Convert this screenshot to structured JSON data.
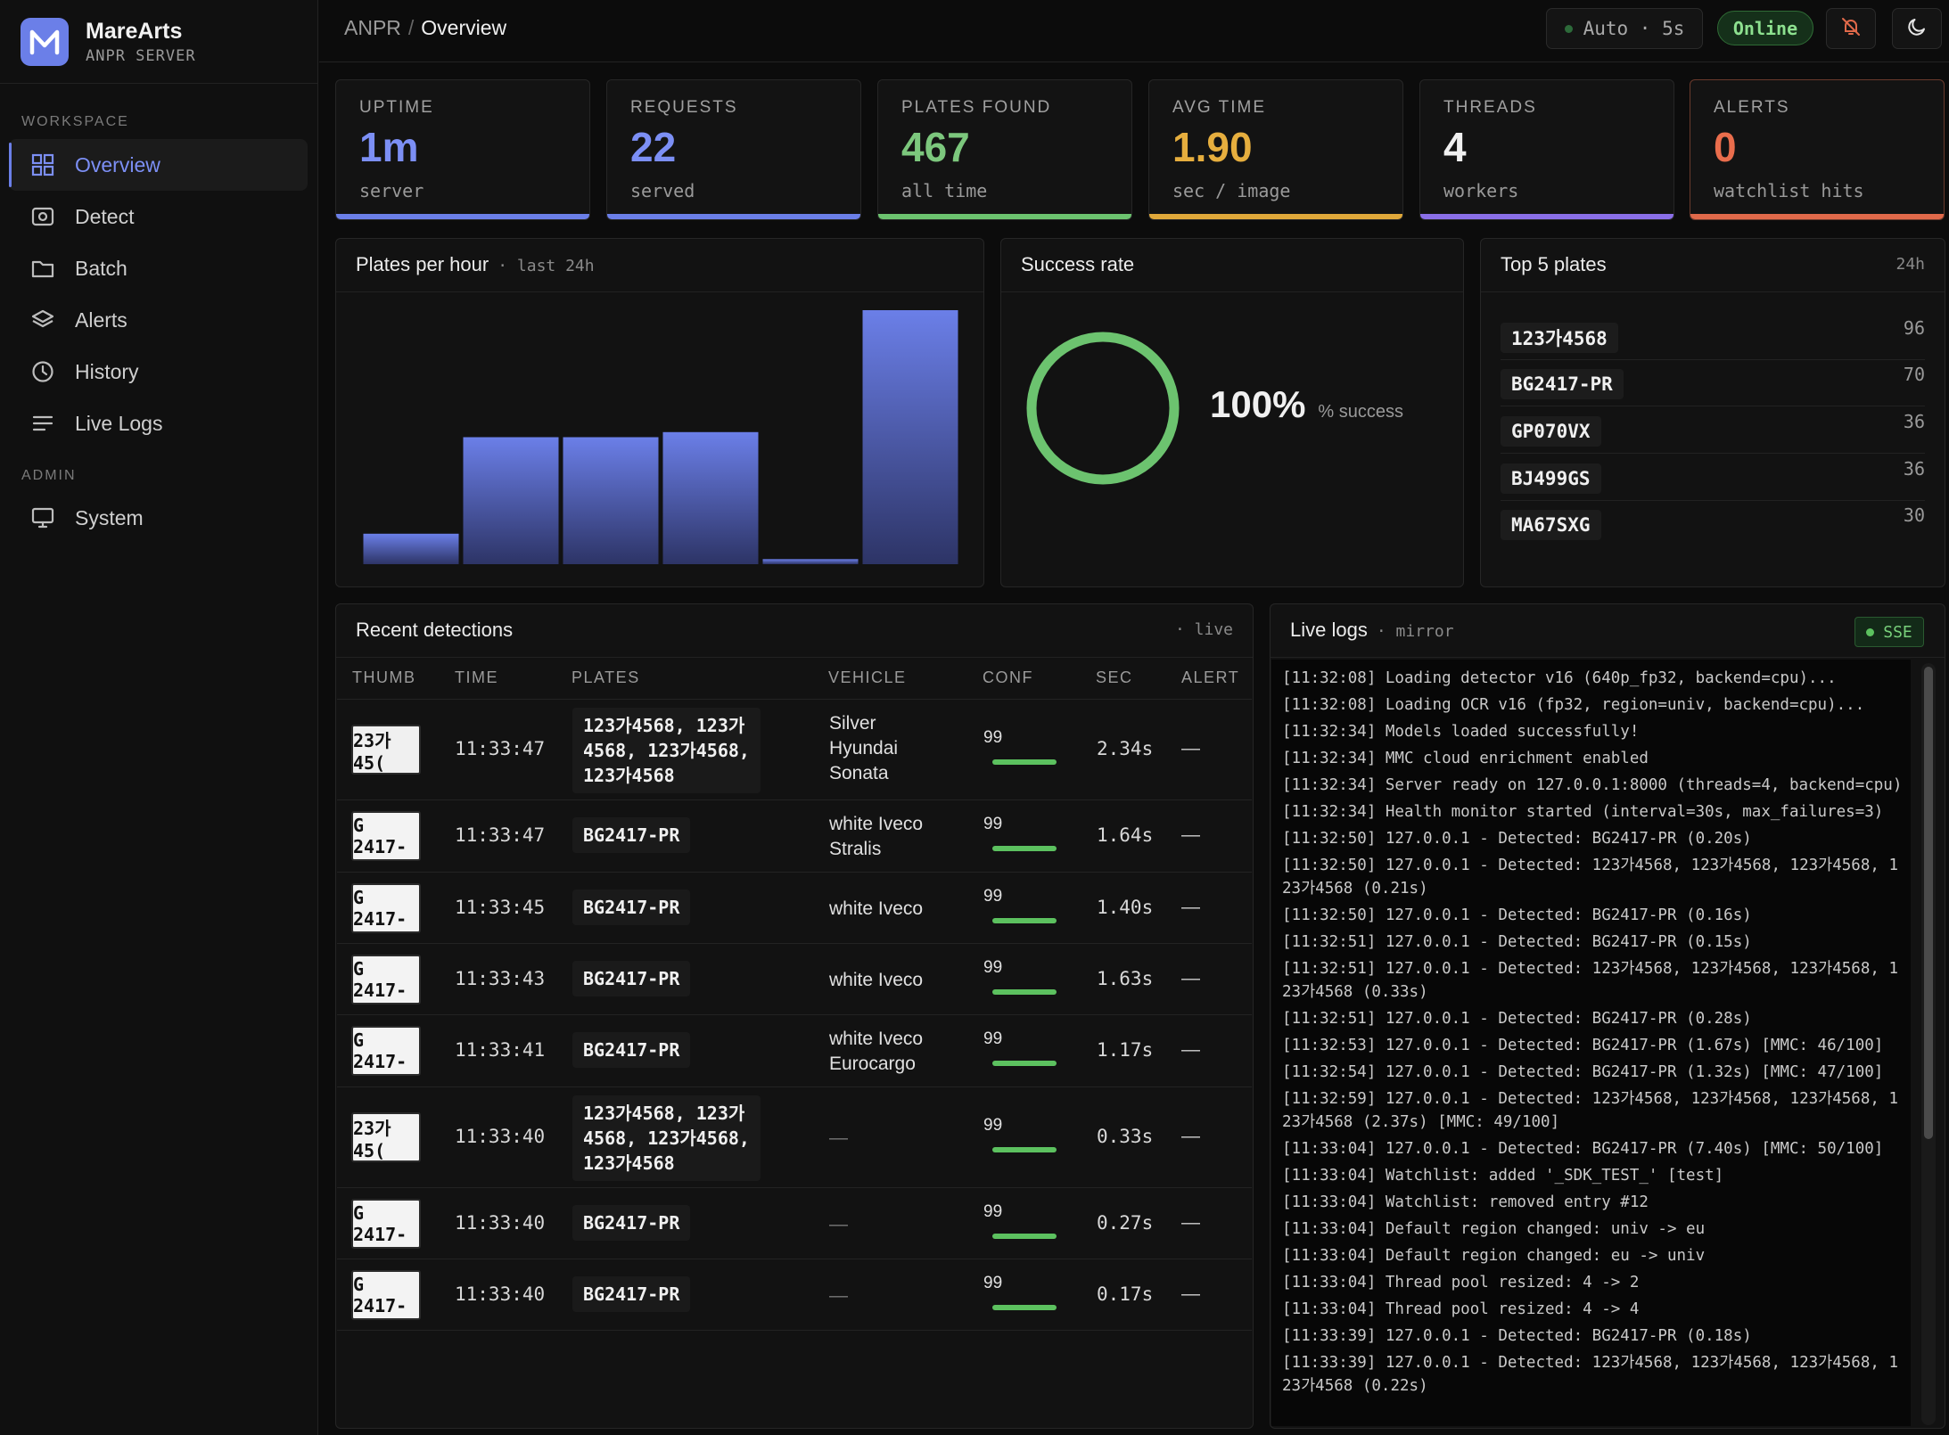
{
  "brand": {
    "name": "MareArts",
    "sub": "ANPR SERVER"
  },
  "nav": {
    "workspace_label": "WORKSPACE",
    "admin_label": "ADMIN",
    "items": [
      {
        "label": "Overview",
        "icon": "grid-icon",
        "active": true
      },
      {
        "label": "Detect",
        "icon": "camera-icon"
      },
      {
        "label": "Batch",
        "icon": "folder-icon"
      },
      {
        "label": "Alerts",
        "icon": "layers-icon"
      },
      {
        "label": "History",
        "icon": "clock-icon"
      },
      {
        "label": "Live Logs",
        "icon": "list-icon"
      }
    ],
    "admin_items": [
      {
        "label": "System",
        "icon": "monitor-icon"
      }
    ]
  },
  "header": {
    "crumb_root": "ANPR",
    "crumb_sep": "/",
    "crumb_current": "Overview",
    "auto_refresh": "Auto · 5s",
    "status": "Online"
  },
  "stats": [
    {
      "label": "UPTIME",
      "value": "1m",
      "sub": "server",
      "color": "#6b7fe8"
    },
    {
      "label": "REQUESTS",
      "value": "22",
      "sub": "served",
      "color": "#6b7fe8"
    },
    {
      "label": "PLATES FOUND",
      "value": "467",
      "sub": "all time",
      "color": "#6cc36f"
    },
    {
      "label": "AVG TIME",
      "value": "1.90",
      "sub": "sec / image",
      "color": "#e0a83a"
    },
    {
      "label": "THREADS",
      "value": "4",
      "sub": "workers",
      "color": "#8a6fe8"
    },
    {
      "label": "ALERTS",
      "value": "0",
      "sub": "watchlist hits",
      "color": "#e0694a"
    }
  ],
  "plates_per_hour": {
    "title": "Plates per hour",
    "meta": "last 24h"
  },
  "chart_data": {
    "type": "bar",
    "title": "Plates per hour",
    "values": [
      12,
      50,
      50,
      52,
      2,
      100
    ],
    "ylim": [
      0,
      100
    ]
  },
  "success": {
    "title": "Success rate",
    "value": "100%",
    "label": "% success",
    "fraction": 1.0
  },
  "top_plates": {
    "title": "Top 5 plates",
    "meta": "24h",
    "items": [
      {
        "plate": "123가4568",
        "count": "96"
      },
      {
        "plate": "BG2417-PR",
        "count": "70"
      },
      {
        "plate": "GP070VX",
        "count": "36"
      },
      {
        "plate": "BJ499GS",
        "count": "36"
      },
      {
        "plate": "MA67SXG",
        "count": "30"
      }
    ]
  },
  "recent": {
    "title": "Recent detections",
    "meta": "· live",
    "columns": [
      "THUMB",
      "TIME",
      "PLATES",
      "VEHICLE",
      "CONF",
      "SEC",
      "ALERT"
    ],
    "rows": [
      {
        "thumb": "23가 45(",
        "time": "11:33:47",
        "plates": "123가4568, 123가\n4568, 123가4568,\n123가4568",
        "vehicle": "Silver\nHyundai\nSonata",
        "conf": "99",
        "sec": "2.34s",
        "alert": "—"
      },
      {
        "thumb": "G 2417-",
        "time": "11:33:47",
        "plates": "BG2417-PR",
        "vehicle": "white Iveco\nStralis",
        "conf": "99",
        "sec": "1.64s",
        "alert": "—"
      },
      {
        "thumb": "G 2417-",
        "time": "11:33:45",
        "plates": "BG2417-PR",
        "vehicle": "white Iveco",
        "conf": "99",
        "sec": "1.40s",
        "alert": "—"
      },
      {
        "thumb": "G 2417-",
        "time": "11:33:43",
        "plates": "BG2417-PR",
        "vehicle": "white Iveco",
        "conf": "99",
        "sec": "1.63s",
        "alert": "—"
      },
      {
        "thumb": "G 2417-",
        "time": "11:33:41",
        "plates": "BG2417-PR",
        "vehicle": "white Iveco\nEurocargo",
        "conf": "99",
        "sec": "1.17s",
        "alert": "—"
      },
      {
        "thumb": "23가 45(",
        "time": "11:33:40",
        "plates": "123가4568, 123가\n4568, 123가4568,\n123가4568",
        "vehicle": "—",
        "conf": "99",
        "sec": "0.33s",
        "alert": "—"
      },
      {
        "thumb": "G 2417-",
        "time": "11:33:40",
        "plates": "BG2417-PR",
        "vehicle": "—",
        "conf": "99",
        "sec": "0.27s",
        "alert": "—"
      },
      {
        "thumb": "G 2417-",
        "time": "11:33:40",
        "plates": "BG2417-PR",
        "vehicle": "—",
        "conf": "99",
        "sec": "0.17s",
        "alert": "—"
      }
    ]
  },
  "logs": {
    "title": "Live logs",
    "meta": "mirror",
    "badge": "SSE",
    "lines": [
      "[11:32:08] Loading detector v16 (640p_fp32, backend=cpu)...",
      "[11:32:08] Loading OCR v16 (fp32, region=univ, backend=cpu)...",
      "[11:32:34] Models loaded successfully!",
      "[11:32:34] MMC cloud enrichment enabled",
      "[11:32:34] Server ready on 127.0.0.1:8000 (threads=4, backend=cpu)",
      "[11:32:34] Health monitor started (interval=30s, max_failures=3)",
      "[11:32:50] 127.0.0.1 - Detected: BG2417-PR (0.20s)",
      "[11:32:50] 127.0.0.1 - Detected: 123가4568, 123가4568, 123가4568, 123가4568 (0.21s)",
      "[11:32:50] 127.0.0.1 - Detected: BG2417-PR (0.16s)",
      "[11:32:51] 127.0.0.1 - Detected: BG2417-PR (0.15s)",
      "[11:32:51] 127.0.0.1 - Detected: 123가4568, 123가4568, 123가4568, 123가4568 (0.33s)",
      "[11:32:51] 127.0.0.1 - Detected: BG2417-PR (0.28s)",
      "[11:32:53] 127.0.0.1 - Detected: BG2417-PR (1.67s) [MMC: 46/100]",
      "[11:32:54] 127.0.0.1 - Detected: BG2417-PR (1.32s) [MMC: 47/100]",
      "[11:32:59] 127.0.0.1 - Detected: 123가4568, 123가4568, 123가4568, 123가4568 (2.37s) [MMC: 49/100]",
      "[11:33:04] 127.0.0.1 - Detected: BG2417-PR (7.40s) [MMC: 50/100]",
      "[11:33:04] Watchlist: added '_SDK_TEST_' [test]",
      "[11:33:04] Watchlist: removed entry #12",
      "[11:33:04] Default region changed: univ -> eu",
      "[11:33:04] Default region changed: eu -> univ",
      "[11:33:04] Thread pool resized: 4 -> 2",
      "[11:33:04] Thread pool resized: 4 -> 4",
      "[11:33:39] 127.0.0.1 - Detected: BG2417-PR (0.18s)",
      "[11:33:39] 127.0.0.1 - Detected: 123가4568, 123가4568, 123가4568, 123가4568 (0.22s)"
    ]
  }
}
